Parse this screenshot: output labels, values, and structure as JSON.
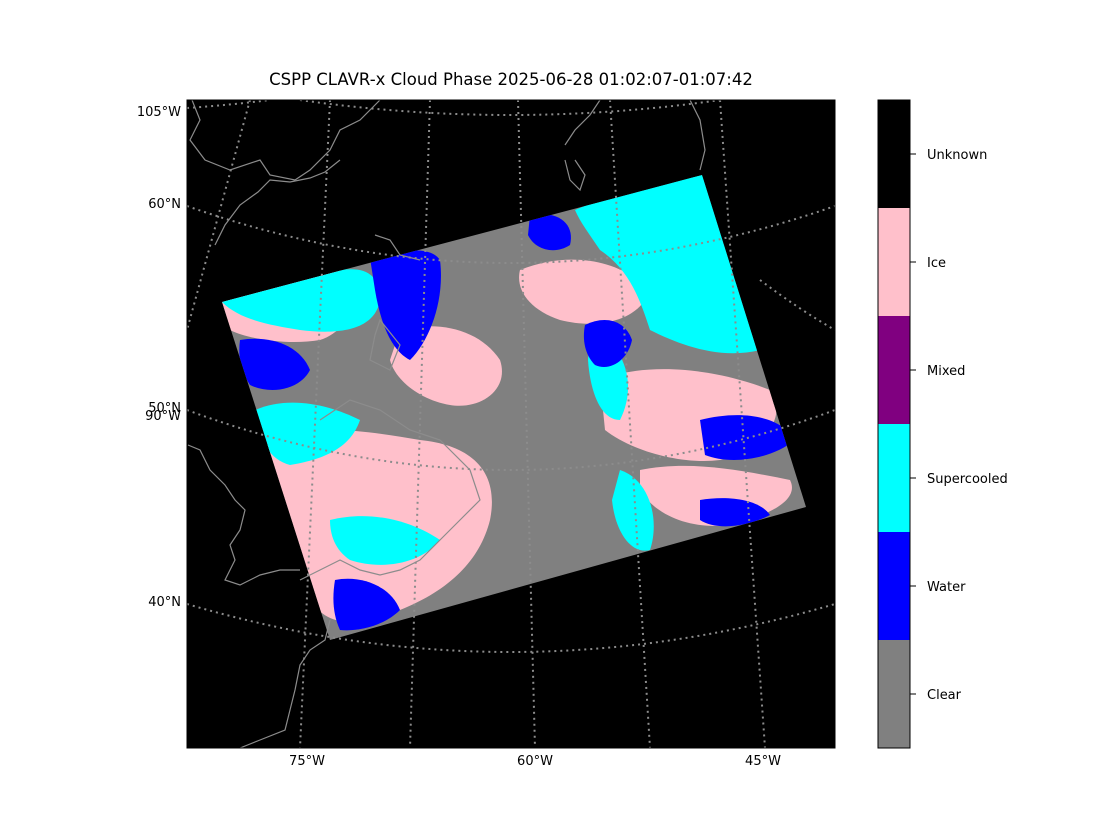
{
  "title": "CSPP CLAVR-x Cloud Phase 2025-06-28 01:02:07-01:07:42",
  "map": {
    "background": "#000000",
    "coastline_color": "#8c8c8c",
    "graticule_color": "#8c8c8c",
    "lat_labels": [
      "105°W",
      "60°N",
      "50°N",
      "90°W",
      "40°N"
    ],
    "lon_labels": [
      "75°W",
      "60°W",
      "45°W"
    ]
  },
  "legend": {
    "classes": [
      {
        "name": "Unknown",
        "color": "#000000"
      },
      {
        "name": "Ice",
        "color": "#ffc0cb"
      },
      {
        "name": "Mixed",
        "color": "#800080"
      },
      {
        "name": "Supercooled",
        "color": "#00ffff"
      },
      {
        "name": "Water",
        "color": "#0000ff"
      },
      {
        "name": "Clear",
        "color": "#808080"
      }
    ]
  }
}
